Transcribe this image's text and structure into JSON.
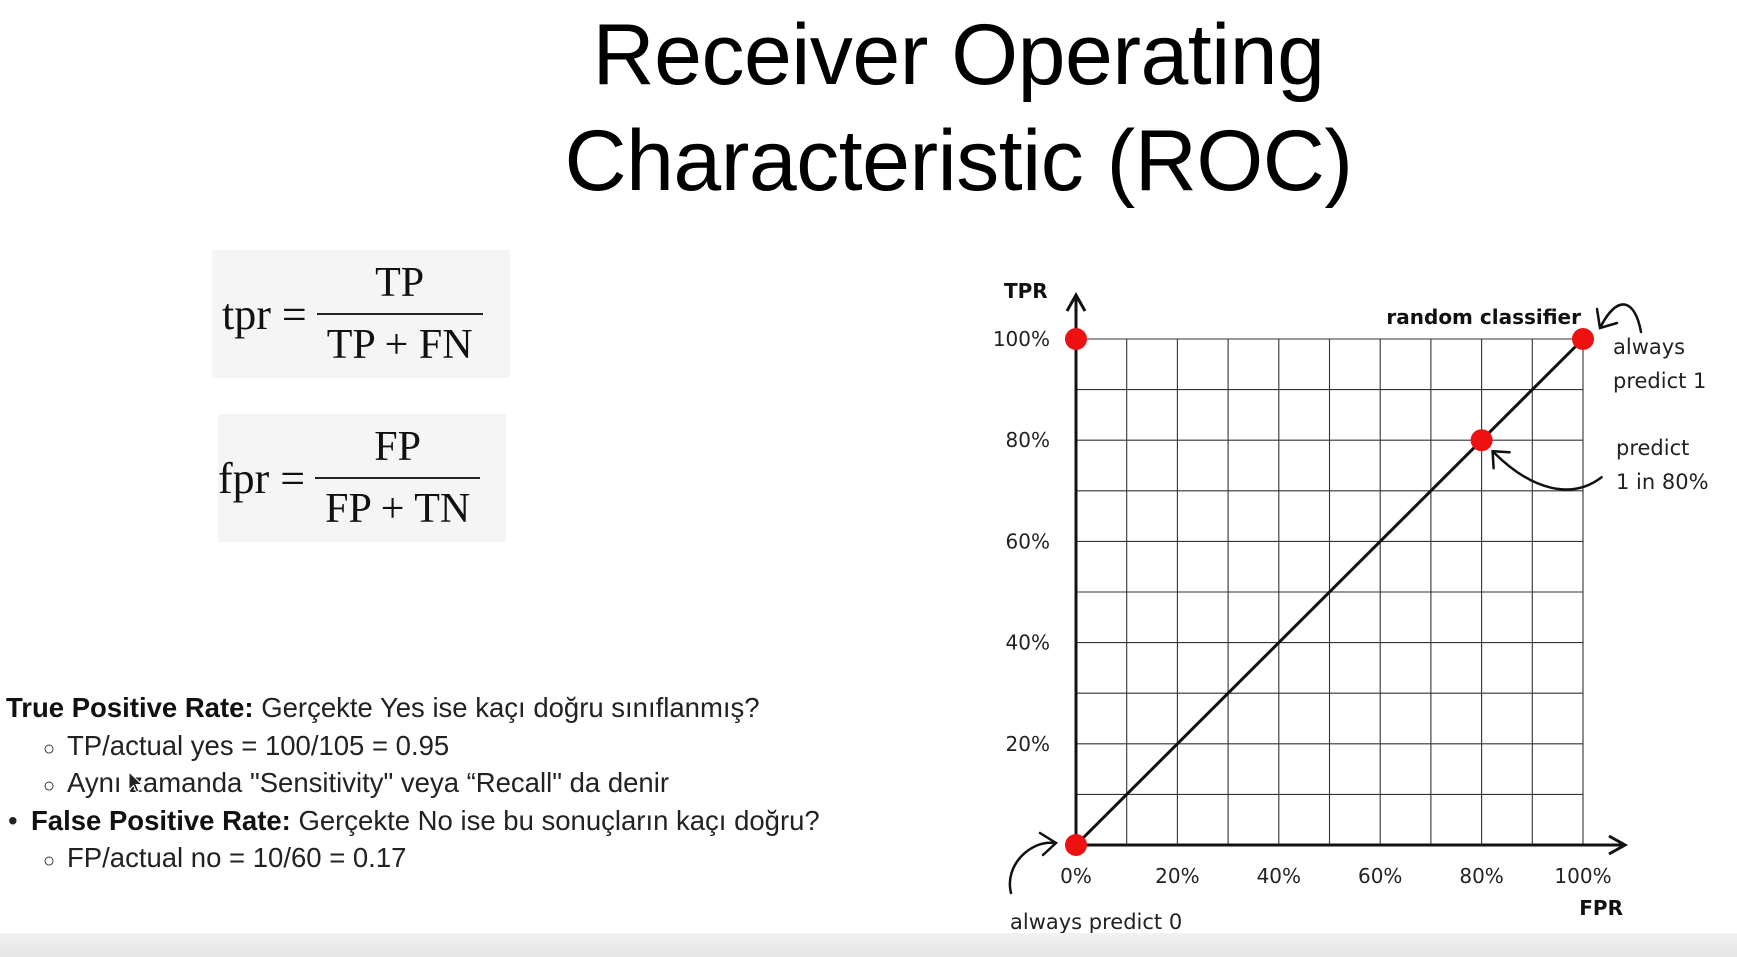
{
  "slide": {
    "title_line1": "Receiver Operating",
    "title_line2": "Characteristic (ROC)"
  },
  "formulas": [
    {
      "lhs": "tpr =",
      "numerator": "TP",
      "denominator": "TP + FN"
    },
    {
      "lhs": "fpr =",
      "numerator": "FP",
      "denominator": "FP + TN"
    }
  ],
  "notes": {
    "tpr_term": "True Positive Rate:",
    "tpr_question": " Gerçekte Yes ise kaçı doğru sınıflanmış?",
    "tpr_calc": "TP/actual yes = 100/105 = 0.95",
    "tpr_alias": "Aynı zamanda  \"Sensitivity\" veya “Recall\" da denir",
    "fpr_term": "False Positive Rate:",
    "fpr_question": " Gerçekte No ise bu sonuçların kaçı doğru?",
    "fpr_calc": "FP/actual no = 10/60 = 0.17"
  },
  "chart_data": {
    "type": "line",
    "xlabel": "FPR",
    "ylabel": "TPR",
    "xlim": [
      0,
      100
    ],
    "ylim": [
      0,
      100
    ],
    "x_ticks": [
      "0%",
      "20%",
      "40%",
      "60%",
      "80%",
      "100%"
    ],
    "y_ticks": [
      "20%",
      "40%",
      "60%",
      "80%",
      "100%"
    ],
    "grid": true,
    "grid_step": 10,
    "series": [
      {
        "name": "random classifier",
        "x": [
          0,
          100
        ],
        "y": [
          0,
          100
        ]
      }
    ],
    "points": [
      {
        "x": 0,
        "y": 0,
        "label": "always predict 0"
      },
      {
        "x": 0,
        "y": 100,
        "label": ""
      },
      {
        "x": 80,
        "y": 80,
        "label": "predict 1 in 80%"
      },
      {
        "x": 100,
        "y": 100,
        "label": "always predict 1"
      }
    ],
    "annotations": {
      "random_classifier": "random classifier",
      "always1_line1": "always",
      "always1_line2": "predict 1",
      "predict80_line1": "predict",
      "predict80_line2": "1 in 80%",
      "always0": "always predict 0"
    },
    "point_color": "#ee1111",
    "line_color": "#111111"
  }
}
